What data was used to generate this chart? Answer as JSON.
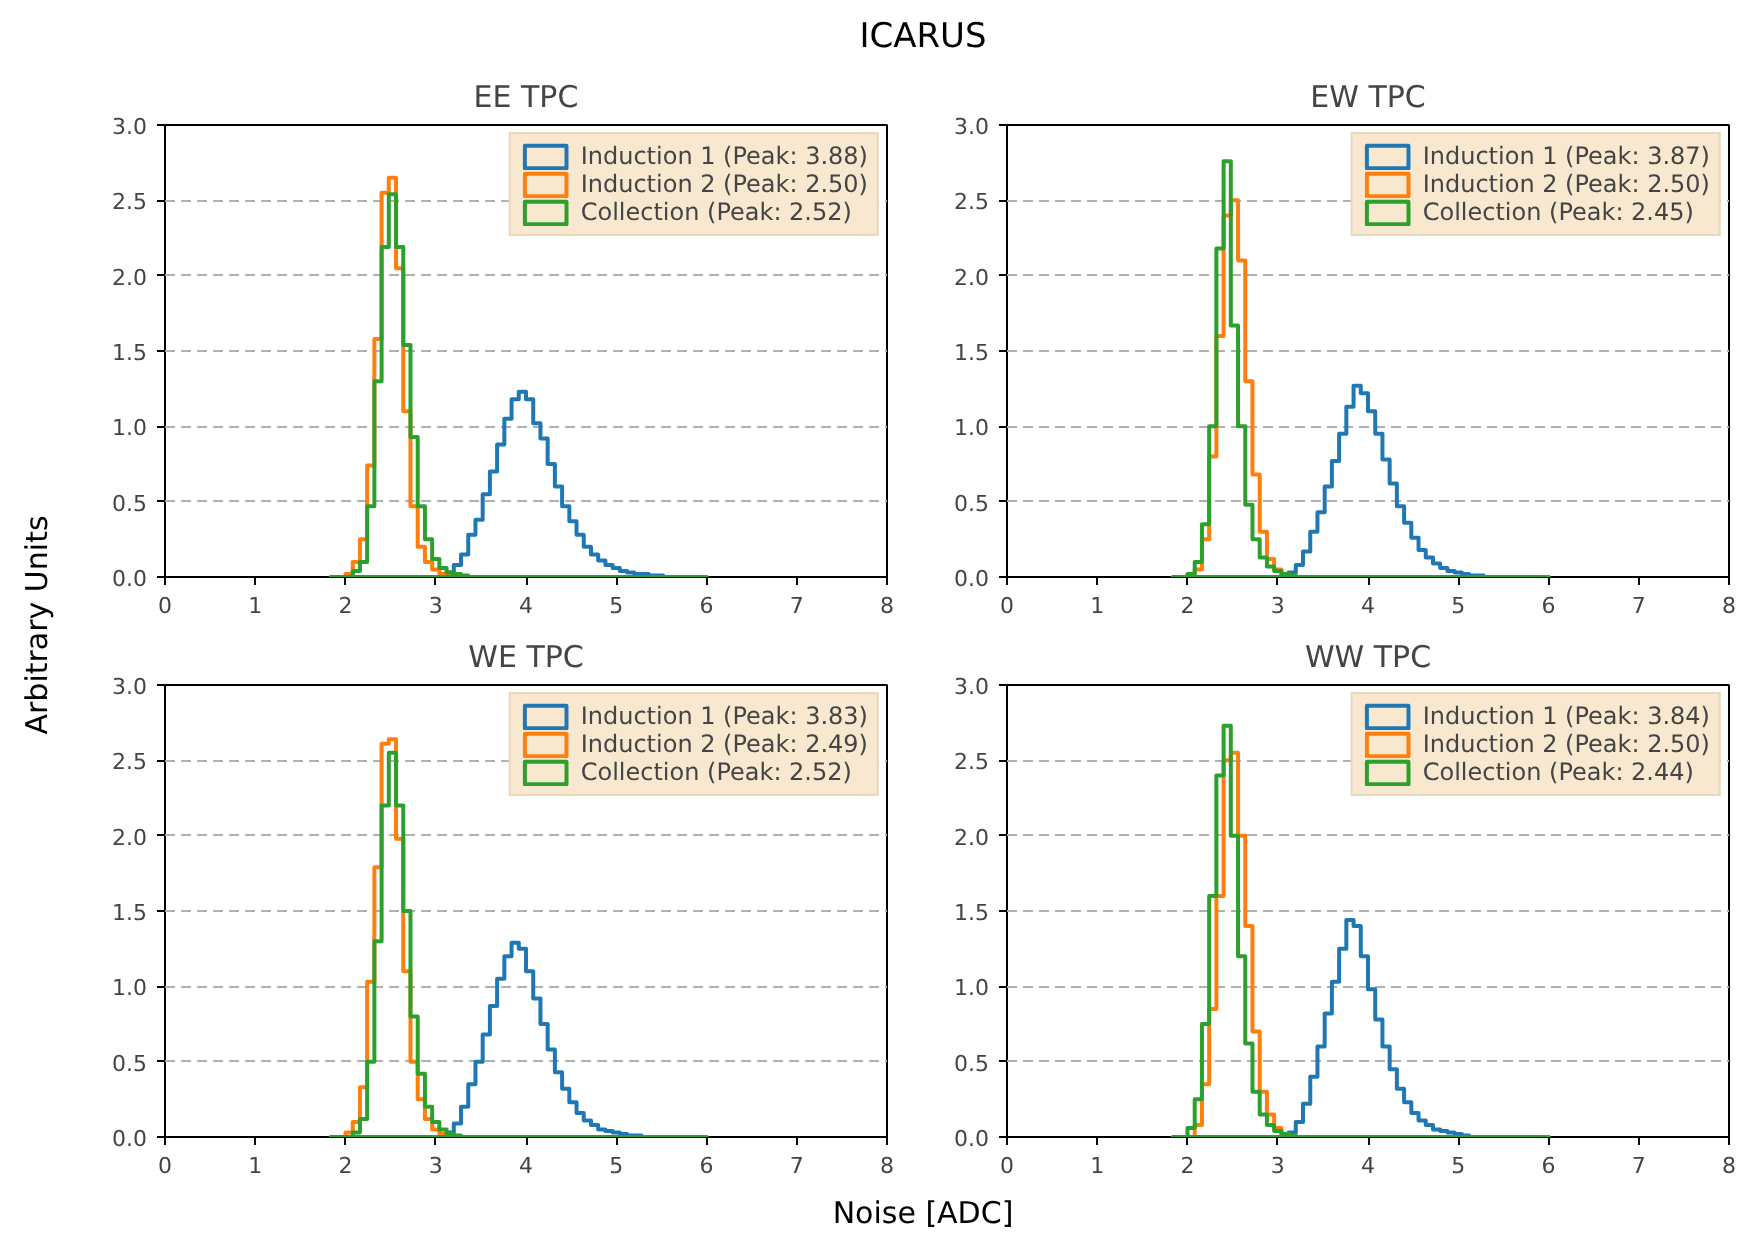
{
  "chart_data": [
    {
      "type": "histogram",
      "title": "EE TPC",
      "annotations": [
        "ICARUS"
      ],
      "ylabel": "Arbitrary Units",
      "xlim": [
        0,
        8
      ],
      "ylim": [
        0,
        3
      ],
      "xticks": [
        0,
        1,
        2,
        3,
        4,
        5,
        6,
        7,
        8
      ],
      "yticks": [
        {
          "value": 0,
          "label": "0.0"
        },
        0.5,
        {
          "value": 1,
          "label": "1.0"
        },
        1.5,
        {
          "value": 2,
          "label": "2.0"
        },
        2.5,
        {
          "value": 3,
          "label": "3.0"
        }
      ],
      "grid": "y",
      "legend": "top right",
      "bins": [
        1.84,
        1.92,
        2.0,
        2.08,
        2.16,
        2.24,
        2.32,
        2.4,
        2.48,
        2.56,
        2.64,
        2.72,
        2.8,
        2.88,
        2.96,
        3.04,
        3.12,
        3.2,
        3.28,
        3.36,
        3.44,
        3.52,
        3.6,
        3.68,
        3.76,
        3.84,
        3.92,
        4.0,
        4.08,
        4.16,
        4.24,
        4.32,
        4.4,
        4.48,
        4.56,
        4.64,
        4.72,
        4.8,
        4.88,
        4.96,
        5.04,
        5.12,
        5.2,
        5.28,
        5.36,
        5.44,
        5.52,
        5.6,
        5.68,
        5.76,
        5.84,
        5.92,
        6.0
      ],
      "series": [
        {
          "name": "Induction 1 (Peak: 3.88)",
          "color": "#1f77b4",
          "values": [
            0,
            0,
            0,
            0,
            0,
            0,
            0,
            0,
            0,
            0,
            0,
            0,
            0,
            0,
            0,
            0,
            0.03,
            0.08,
            0.15,
            0.28,
            0.38,
            0.55,
            0.7,
            0.88,
            1.05,
            1.18,
            1.23,
            1.18,
            1.02,
            0.92,
            0.75,
            0.6,
            0.47,
            0.37,
            0.28,
            0.2,
            0.15,
            0.11,
            0.08,
            0.06,
            0.04,
            0.03,
            0.02,
            0.02,
            0.01,
            0.01,
            0,
            0,
            0,
            0,
            0,
            0
          ]
        },
        {
          "name": "Induction 2 (Peak: 2.50)",
          "color": "#ff7f0e",
          "values": [
            0,
            0,
            0.02,
            0.1,
            0.25,
            0.74,
            1.58,
            2.55,
            2.65,
            2.05,
            1.1,
            0.47,
            0.2,
            0.1,
            0.05,
            0.02,
            0.01,
            0,
            0,
            0,
            0,
            0,
            0,
            0,
            0,
            0,
            0,
            0,
            0,
            0,
            0,
            0,
            0,
            0,
            0,
            0,
            0,
            0,
            0,
            0,
            0,
            0,
            0,
            0,
            0,
            0,
            0,
            0,
            0,
            0,
            0,
            0
          ]
        },
        {
          "name": "Collection (Peak: 2.52)",
          "color": "#2ca02c",
          "values": [
            0,
            0,
            0,
            0.04,
            0.1,
            0.47,
            1.3,
            2.19,
            2.54,
            2.19,
            1.54,
            0.93,
            0.47,
            0.25,
            0.12,
            0.06,
            0.03,
            0.02,
            0.01,
            0,
            0,
            0,
            0,
            0,
            0,
            0,
            0,
            0,
            0,
            0,
            0,
            0,
            0,
            0,
            0,
            0,
            0,
            0,
            0,
            0,
            0,
            0,
            0,
            0,
            0,
            0,
            0,
            0,
            0,
            0,
            0,
            0
          ]
        }
      ]
    },
    {
      "type": "histogram",
      "title": "EW TPC",
      "xlim": [
        0,
        8
      ],
      "ylim": [
        0,
        3
      ],
      "xticks": [
        0,
        1,
        2,
        3,
        4,
        5,
        6,
        7,
        8
      ],
      "yticks": [
        {
          "value": 0,
          "label": "0.0"
        },
        0.5,
        {
          "value": 1,
          "label": "1.0"
        },
        1.5,
        {
          "value": 2,
          "label": "2.0"
        },
        2.5,
        {
          "value": 3,
          "label": "3.0"
        }
      ],
      "grid": "y",
      "legend": "top right",
      "bins": [
        1.84,
        1.92,
        2.0,
        2.08,
        2.16,
        2.24,
        2.32,
        2.4,
        2.48,
        2.56,
        2.64,
        2.72,
        2.8,
        2.88,
        2.96,
        3.04,
        3.12,
        3.2,
        3.28,
        3.36,
        3.44,
        3.52,
        3.6,
        3.68,
        3.76,
        3.84,
        3.92,
        4.0,
        4.08,
        4.16,
        4.24,
        4.32,
        4.4,
        4.48,
        4.56,
        4.64,
        4.72,
        4.8,
        4.88,
        4.96,
        5.04,
        5.12,
        5.2,
        5.28,
        5.36,
        5.44,
        5.52,
        5.6,
        5.68,
        5.76,
        5.84,
        5.92,
        6.0
      ],
      "series": [
        {
          "name": "Induction 1 (Peak: 3.87)",
          "color": "#1f77b4",
          "values": [
            0,
            0,
            0,
            0,
            0,
            0,
            0,
            0,
            0,
            0,
            0,
            0,
            0,
            0,
            0,
            0,
            0.03,
            0.08,
            0.17,
            0.3,
            0.43,
            0.6,
            0.77,
            0.95,
            1.13,
            1.27,
            1.22,
            1.1,
            0.95,
            0.78,
            0.62,
            0.47,
            0.36,
            0.26,
            0.18,
            0.13,
            0.09,
            0.06,
            0.04,
            0.03,
            0.02,
            0.01,
            0.01,
            0,
            0,
            0,
            0,
            0,
            0,
            0,
            0,
            0
          ]
        },
        {
          "name": "Induction 2 (Peak: 2.50)",
          "color": "#ff7f0e",
          "values": [
            0,
            0,
            0,
            0.05,
            0.25,
            0.8,
            1.6,
            2.4,
            2.5,
            2.1,
            1.3,
            0.68,
            0.3,
            0.12,
            0.05,
            0.02,
            0,
            0,
            0,
            0,
            0,
            0,
            0,
            0,
            0,
            0,
            0,
            0,
            0,
            0,
            0,
            0,
            0,
            0,
            0,
            0,
            0,
            0,
            0,
            0,
            0,
            0,
            0,
            0,
            0,
            0,
            0,
            0,
            0,
            0,
            0,
            0
          ]
        },
        {
          "name": "Collection (Peak: 2.45)",
          "color": "#2ca02c",
          "values": [
            0,
            0,
            0.02,
            0.1,
            0.35,
            1.0,
            2.18,
            2.76,
            1.67,
            1.0,
            0.48,
            0.25,
            0.13,
            0.07,
            0.04,
            0.02,
            0.01,
            0,
            0,
            0,
            0,
            0,
            0,
            0,
            0,
            0,
            0,
            0,
            0,
            0,
            0,
            0,
            0,
            0,
            0,
            0,
            0,
            0,
            0,
            0,
            0,
            0,
            0,
            0,
            0,
            0,
            0,
            0,
            0,
            0,
            0,
            0
          ]
        }
      ]
    },
    {
      "type": "histogram",
      "title": "WE TPC",
      "xlabel": "Noise [ADC]",
      "xlim": [
        0,
        8
      ],
      "ylim": [
        0,
        3
      ],
      "xticks": [
        0,
        1,
        2,
        3,
        4,
        5,
        6,
        7,
        8
      ],
      "yticks": [
        {
          "value": 0,
          "label": "0.0"
        },
        0.5,
        {
          "value": 1,
          "label": "1.0"
        },
        1.5,
        {
          "value": 2,
          "label": "2.0"
        },
        2.5,
        {
          "value": 3,
          "label": "3.0"
        }
      ],
      "grid": "y",
      "legend": "top right",
      "bins": [
        1.84,
        1.92,
        2.0,
        2.08,
        2.16,
        2.24,
        2.32,
        2.4,
        2.48,
        2.56,
        2.64,
        2.72,
        2.8,
        2.88,
        2.96,
        3.04,
        3.12,
        3.2,
        3.28,
        3.36,
        3.44,
        3.52,
        3.6,
        3.68,
        3.76,
        3.84,
        3.92,
        4.0,
        4.08,
        4.16,
        4.24,
        4.32,
        4.4,
        4.48,
        4.56,
        4.64,
        4.72,
        4.8,
        4.88,
        4.96,
        5.04,
        5.12,
        5.2,
        5.28,
        5.36,
        5.44,
        5.52,
        5.6,
        5.68,
        5.76,
        5.84,
        5.92,
        6.0
      ],
      "series": [
        {
          "name": "Induction 1 (Peak: 3.83)",
          "color": "#1f77b4",
          "values": [
            0,
            0,
            0,
            0,
            0,
            0,
            0,
            0,
            0,
            0,
            0,
            0,
            0,
            0,
            0,
            0,
            0.03,
            0.09,
            0.2,
            0.35,
            0.5,
            0.68,
            0.87,
            1.05,
            1.2,
            1.29,
            1.25,
            1.1,
            0.92,
            0.75,
            0.58,
            0.43,
            0.32,
            0.23,
            0.16,
            0.11,
            0.08,
            0.05,
            0.04,
            0.03,
            0.02,
            0.01,
            0.01,
            0,
            0,
            0,
            0,
            0,
            0,
            0,
            0,
            0
          ]
        },
        {
          "name": "Induction 2 (Peak: 2.49)",
          "color": "#ff7f0e",
          "values": [
            0,
            0,
            0.03,
            0.1,
            0.33,
            1.03,
            1.79,
            2.61,
            2.64,
            1.98,
            1.1,
            0.5,
            0.25,
            0.12,
            0.05,
            0.02,
            0,
            0,
            0,
            0,
            0,
            0,
            0,
            0,
            0,
            0,
            0,
            0,
            0,
            0,
            0,
            0,
            0,
            0,
            0,
            0,
            0,
            0,
            0,
            0,
            0,
            0,
            0,
            0,
            0,
            0,
            0,
            0,
            0,
            0,
            0,
            0
          ]
        },
        {
          "name": "Collection (Peak: 2.52)",
          "color": "#2ca02c",
          "values": [
            0,
            0,
            0,
            0.03,
            0.12,
            0.5,
            1.3,
            2.2,
            2.55,
            2.2,
            1.5,
            0.8,
            0.42,
            0.2,
            0.1,
            0.05,
            0.02,
            0.01,
            0,
            0,
            0,
            0,
            0,
            0,
            0,
            0,
            0,
            0,
            0,
            0,
            0,
            0,
            0,
            0,
            0,
            0,
            0,
            0,
            0,
            0,
            0,
            0,
            0,
            0,
            0,
            0,
            0,
            0,
            0,
            0,
            0,
            0
          ]
        }
      ]
    },
    {
      "type": "histogram",
      "title": "WW TPC",
      "xlim": [
        0,
        8
      ],
      "ylim": [
        0,
        3
      ],
      "xticks": [
        0,
        1,
        2,
        3,
        4,
        5,
        6,
        7,
        8
      ],
      "yticks": [
        {
          "value": 0,
          "label": "0.0"
        },
        0.5,
        {
          "value": 1,
          "label": "1.0"
        },
        1.5,
        {
          "value": 2,
          "label": "2.0"
        },
        2.5,
        {
          "value": 3,
          "label": "3.0"
        }
      ],
      "grid": "y",
      "legend": "top right",
      "bins": [
        1.84,
        1.92,
        2.0,
        2.08,
        2.16,
        2.24,
        2.32,
        2.4,
        2.48,
        2.56,
        2.64,
        2.72,
        2.8,
        2.88,
        2.96,
        3.04,
        3.12,
        3.2,
        3.28,
        3.36,
        3.44,
        3.52,
        3.6,
        3.68,
        3.76,
        3.84,
        3.92,
        4.0,
        4.08,
        4.16,
        4.24,
        4.32,
        4.4,
        4.48,
        4.56,
        4.64,
        4.72,
        4.8,
        4.88,
        4.96,
        5.04,
        5.12,
        5.2,
        5.28,
        5.36,
        5.44,
        5.52,
        5.6,
        5.68,
        5.76,
        5.84,
        5.92,
        6.0
      ],
      "series": [
        {
          "name": "Induction 1 (Peak: 3.84)",
          "color": "#1f77b4",
          "values": [
            0,
            0,
            0,
            0,
            0,
            0,
            0,
            0,
            0,
            0,
            0,
            0,
            0,
            0,
            0,
            0,
            0.03,
            0.1,
            0.22,
            0.4,
            0.6,
            0.82,
            1.03,
            1.25,
            1.44,
            1.4,
            1.2,
            0.98,
            0.78,
            0.6,
            0.45,
            0.32,
            0.23,
            0.16,
            0.11,
            0.08,
            0.05,
            0.04,
            0.03,
            0.02,
            0.01,
            0,
            0,
            0,
            0,
            0,
            0,
            0,
            0,
            0,
            0,
            0
          ]
        },
        {
          "name": "Induction 2 (Peak: 2.50)",
          "color": "#ff7f0e",
          "values": [
            0,
            0,
            0,
            0.08,
            0.35,
            0.85,
            1.6,
            2.5,
            2.55,
            2.0,
            1.4,
            0.7,
            0.3,
            0.15,
            0.06,
            0.02,
            0,
            0,
            0,
            0,
            0,
            0,
            0,
            0,
            0,
            0,
            0,
            0,
            0,
            0,
            0,
            0,
            0,
            0,
            0,
            0,
            0,
            0,
            0,
            0,
            0,
            0,
            0,
            0,
            0,
            0,
            0,
            0,
            0,
            0,
            0,
            0
          ]
        },
        {
          "name": "Collection (Peak: 2.44)",
          "color": "#2ca02c",
          "values": [
            0,
            0,
            0.06,
            0.25,
            0.75,
            1.6,
            2.4,
            2.73,
            2.0,
            1.2,
            0.62,
            0.3,
            0.15,
            0.08,
            0.04,
            0.02,
            0.01,
            0,
            0,
            0,
            0,
            0,
            0,
            0,
            0,
            0,
            0,
            0,
            0,
            0,
            0,
            0,
            0,
            0,
            0,
            0,
            0,
            0,
            0,
            0,
            0,
            0,
            0,
            0,
            0,
            0,
            0,
            0,
            0,
            0,
            0,
            0
          ]
        }
      ]
    }
  ]
}
